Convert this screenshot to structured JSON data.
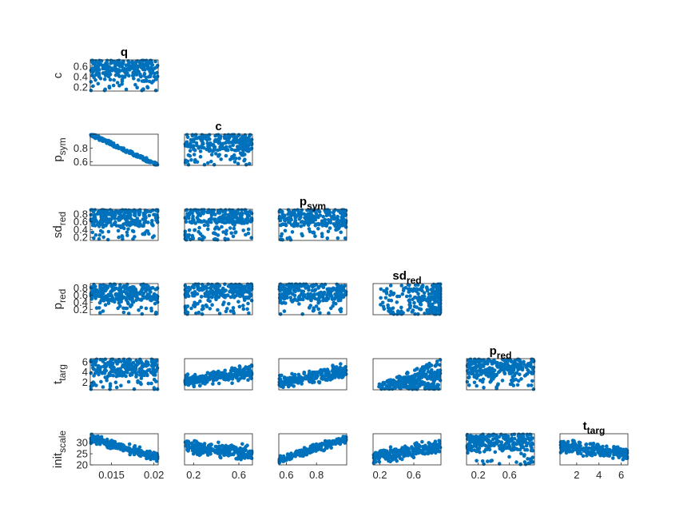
{
  "chart_data": {
    "type": "scatter",
    "layout": "lower-triangular scatter-plot matrix",
    "marker_color": "#0072BD",
    "grid": false,
    "variables": [
      {
        "id": "q",
        "title": "q",
        "title_sub": "",
        "range": [
          0.0125,
          0.0205
        ],
        "ticks": [
          0.015,
          0.02
        ],
        "tick_labels": [
          "0.015",
          "0.02"
        ]
      },
      {
        "id": "c",
        "title": "c",
        "title_sub": "",
        "range": [
          0.12,
          0.72
        ],
        "ticks": [
          0.2,
          0.4,
          0.6
        ],
        "tick_labels": [
          "0.2",
          "0.4",
          "0.6"
        ],
        "x_ticks": [
          0.2,
          0.6
        ],
        "x_tick_labels": [
          "0.2",
          "0.6"
        ]
      },
      {
        "id": "p_sym",
        "title": "p",
        "title_sub": "sym",
        "range": [
          0.55,
          1.0
        ],
        "ticks": [
          0.6,
          0.8
        ],
        "tick_labels": [
          "0.6",
          "0.8"
        ]
      },
      {
        "id": "sd_red",
        "title": "sd",
        "title_sub": "red",
        "range": [
          0.12,
          0.92
        ],
        "ticks": [
          0.2,
          0.4,
          0.6,
          0.8
        ],
        "tick_labels": [
          "0.2",
          "0.4",
          "0.6",
          "0.8"
        ],
        "x_ticks": [
          0.2,
          0.6
        ],
        "x_tick_labels": [
          "0.2",
          "0.6"
        ]
      },
      {
        "id": "p_red",
        "title": "p",
        "title_sub": "red",
        "range": [
          0.05,
          0.92
        ],
        "ticks": [
          0.2,
          0.4,
          0.6,
          0.8
        ],
        "tick_labels": [
          "0.2",
          "0.4",
          "0.6",
          "0.8"
        ],
        "x_ticks": [
          0.2,
          0.6
        ],
        "x_tick_labels": [
          "0.2",
          "0.6"
        ]
      },
      {
        "id": "t_targ",
        "title": "t",
        "title_sub": "targ",
        "range": [
          0.5,
          6.6
        ],
        "ticks": [
          2,
          4,
          6
        ],
        "tick_labels": [
          "2",
          "4",
          "6"
        ]
      },
      {
        "id": "init_scale",
        "title": "init",
        "title_sub": "scale",
        "range": [
          20,
          34
        ],
        "ticks": [
          20,
          25,
          30
        ],
        "tick_labels": [
          "20",
          "25",
          "30"
        ]
      }
    ],
    "panels": [
      {
        "row": "c",
        "col": "q",
        "relation": "none"
      },
      {
        "row": "p_sym",
        "col": "q",
        "relation": "negative-strong"
      },
      {
        "row": "p_sym",
        "col": "c",
        "relation": "none"
      },
      {
        "row": "sd_red",
        "col": "q",
        "relation": "none"
      },
      {
        "row": "sd_red",
        "col": "c",
        "relation": "positive-edge"
      },
      {
        "row": "sd_red",
        "col": "p_sym",
        "relation": "none"
      },
      {
        "row": "p_red",
        "col": "q",
        "relation": "none"
      },
      {
        "row": "p_red",
        "col": "c",
        "relation": "positive-edge"
      },
      {
        "row": "p_red",
        "col": "p_sym",
        "relation": "none"
      },
      {
        "row": "p_red",
        "col": "sd_red",
        "relation": "right-concentrated"
      },
      {
        "row": "t_targ",
        "col": "q",
        "relation": "none"
      },
      {
        "row": "t_targ",
        "col": "c",
        "relation": "positive-weak"
      },
      {
        "row": "t_targ",
        "col": "p_sym",
        "relation": "positive-weak"
      },
      {
        "row": "t_targ",
        "col": "sd_red",
        "relation": "positive-wedge"
      },
      {
        "row": "t_targ",
        "col": "p_red",
        "relation": "none"
      },
      {
        "row": "init_scale",
        "col": "q",
        "relation": "negative"
      },
      {
        "row": "init_scale",
        "col": "c",
        "relation": "negative-weak"
      },
      {
        "row": "init_scale",
        "col": "p_sym",
        "relation": "positive"
      },
      {
        "row": "init_scale",
        "col": "sd_red",
        "relation": "positive-weak"
      },
      {
        "row": "init_scale",
        "col": "p_red",
        "relation": "none"
      },
      {
        "row": "init_scale",
        "col": "t_targ",
        "relation": "negative-weak"
      }
    ]
  }
}
